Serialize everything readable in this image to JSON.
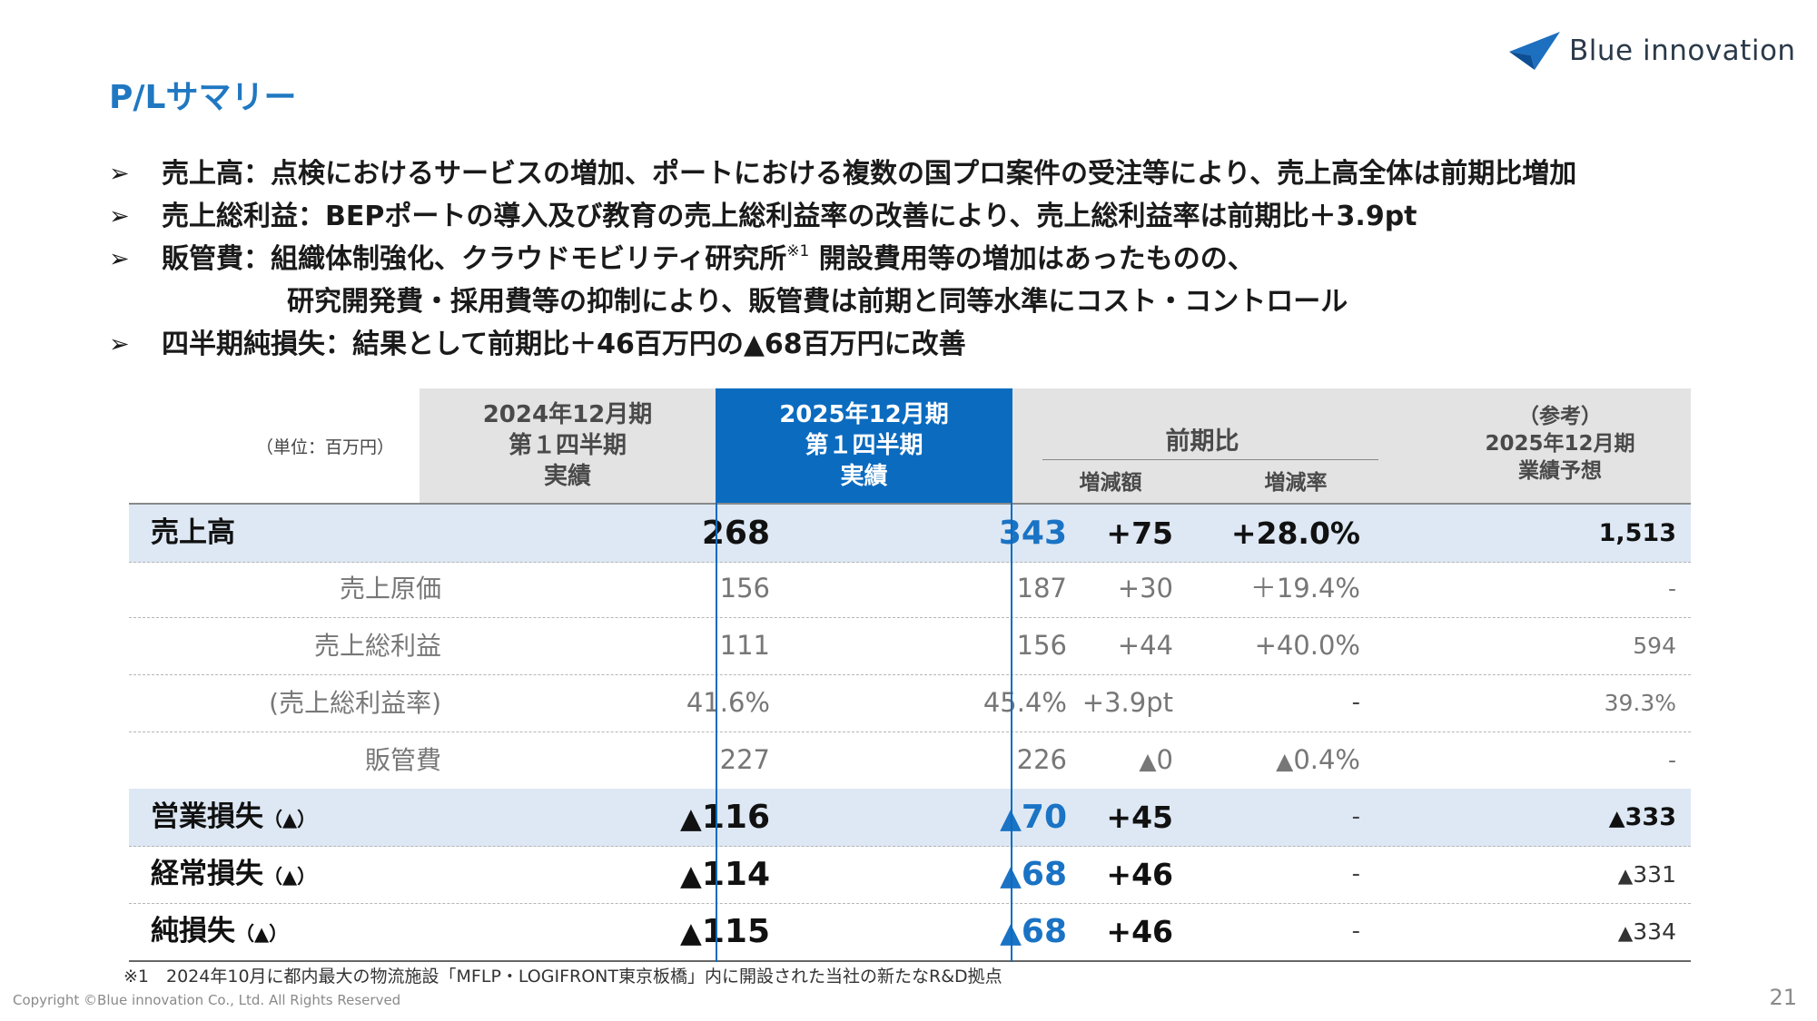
{
  "page": {
    "title": "P/Lサマリー",
    "logo_text": "Blue innovation",
    "copyright": "Copyright ©Blue innovation Co., Ltd. All Rights Reserved",
    "page_number": "21",
    "footnote": "※1　2024年10月に都内最大の物流施設「MFLP・LOGIFRONT東京板橋」内に開設された当社の新たなR&D拠点"
  },
  "bullets": [
    {
      "mark": "➢",
      "text": "売上高：点検におけるサービスの増加、ポートにおける複数の国プロ案件の受注等により、売上高全体は前期比増加"
    },
    {
      "mark": "➢",
      "text": "売上総利益：BEPポートの導入及び教育の売上総利益率の改善により、売上総利益率は前期比＋3.9pt"
    },
    {
      "mark": "➢",
      "text_before": "販管費：組織体制強化、クラウドモビリティ研究所",
      "sup": "※1",
      "text_after": " 開設費用等の増加はあったものの、",
      "continuation": "研究開発費・採用費等の抑制により、販管費は前期と同等水準にコスト・コントロール"
    },
    {
      "mark": "➢",
      "text": "四半期純損失：結果として前期比＋46百万円の▲68百万円に改善"
    }
  ],
  "table": {
    "unit": "（単位：百万円）",
    "col_2024": [
      "2024年12月期",
      "第１四半期",
      "実績"
    ],
    "col_2025": [
      "2025年12月期",
      "第１四半期",
      "実績"
    ],
    "col_yoy": {
      "title": "前期比",
      "diff": "増減額",
      "rate": "増減率"
    },
    "col_forecast": [
      "（参考）",
      "2025年12月期",
      "業績予想"
    ],
    "rows": [
      {
        "label": "売上高",
        "suffix": "",
        "v2024": "268",
        "v2025": "343",
        "diff": "+75",
        "rate": "+28.0%",
        "forecast": "1,513"
      },
      {
        "label": "売上原価",
        "v2024": "156",
        "v2025": "187",
        "diff": "+30",
        "rate": "＋19.4%",
        "forecast": "-"
      },
      {
        "label": "売上総利益",
        "v2024": "111",
        "v2025": "156",
        "diff": "+44",
        "rate": "+40.0%",
        "forecast": "594"
      },
      {
        "label": "(売上総利益率)",
        "v2024": "41.6%",
        "v2025": "45.4%",
        "diff": "+3.9pt",
        "rate": "-",
        "forecast": "39.3%"
      },
      {
        "label": "販管費",
        "v2024": "227",
        "v2025": "226",
        "diff": "0",
        "diff_tri": "▲",
        "rate": "0.4%",
        "rate_tri": "▲",
        "forecast": "-"
      },
      {
        "label": "営業損失",
        "suffix": "（▲）",
        "v2024": "116",
        "v2025": "70",
        "diff": "+45",
        "rate": "-",
        "forecast": "333"
      },
      {
        "label": "経常損失",
        "suffix": "（▲）",
        "v2024": "114",
        "v2025": "68",
        "diff": "+46",
        "rate": "-",
        "forecast": "331"
      },
      {
        "label": "純損失",
        "suffix": "（▲）",
        "v2024": "115",
        "v2025": "68",
        "diff": "+46",
        "rate": "-",
        "forecast": "334"
      }
    ],
    "triangle": "▲"
  },
  "colors": {
    "accent": "#1f78c1",
    "header_blue": "#0b6bbf",
    "shade": "#dde8f4",
    "header_gray": "#e3e3e3"
  }
}
